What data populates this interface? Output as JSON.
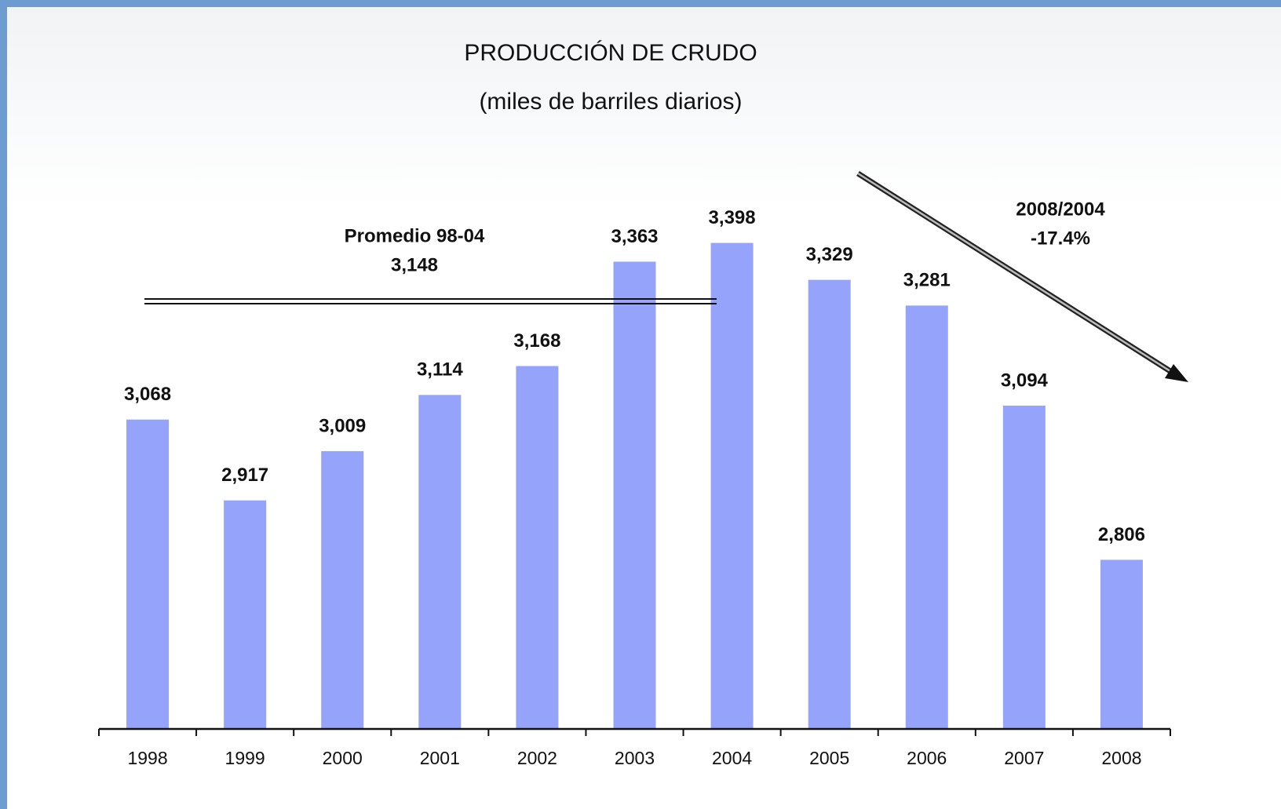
{
  "chart_data": {
    "type": "bar",
    "title": "PRODUCCIÓN DE CRUDO",
    "subtitle": "(miles de barriles diarios)",
    "categories": [
      "1998",
      "1999",
      "2000",
      "2001",
      "2002",
      "2003",
      "2004",
      "2005",
      "2006",
      "2007",
      "2008"
    ],
    "values": [
      3068,
      2917,
      3009,
      3114,
      3168,
      3363,
      3398,
      3329,
      3281,
      3094,
      2806
    ],
    "value_labels": [
      "3,068",
      "2,917",
      "3,009",
      "3,114",
      "3,168",
      "3,363",
      "3,398",
      "3,329",
      "3,281",
      "3,094",
      "2,806"
    ],
    "color": "#95a3fb",
    "ylim": [
      2490,
      3500
    ],
    "annotations": {
      "average_label": "Promedio 98-04",
      "average_value": "3,148",
      "change_label": "2008/2004",
      "change_value": "-17.4%"
    }
  }
}
